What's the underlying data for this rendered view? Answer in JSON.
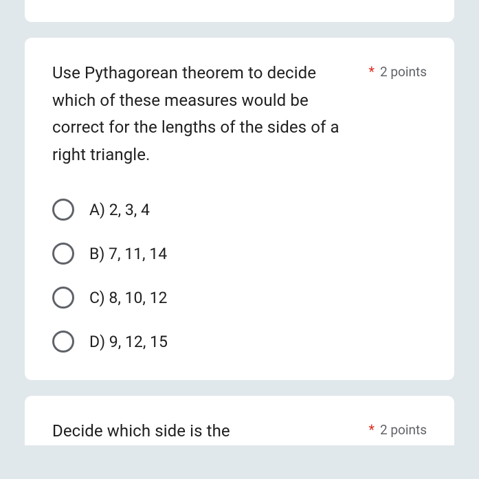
{
  "colors": {
    "page_bg": "#e1e8eb",
    "card_bg": "#ffffff",
    "text_primary": "#1f1f1f",
    "text_secondary": "#5f6368",
    "required": "#d93025",
    "radio_border": "#5f6368"
  },
  "question1": {
    "text": "Use Pythagorean theorem to decide which of these measures would be correct for the lengths of the sides of a right triangle.",
    "required_marker": "*",
    "points": "2 points",
    "options": [
      {
        "label": "A) 2, 3, 4"
      },
      {
        "label": "B) 7, 11, 14"
      },
      {
        "label": "C) 8, 10, 12"
      },
      {
        "label": "D) 9, 12, 15"
      }
    ]
  },
  "question2": {
    "text": "Decide which side is the",
    "required_marker": "*",
    "points": "2 points"
  }
}
